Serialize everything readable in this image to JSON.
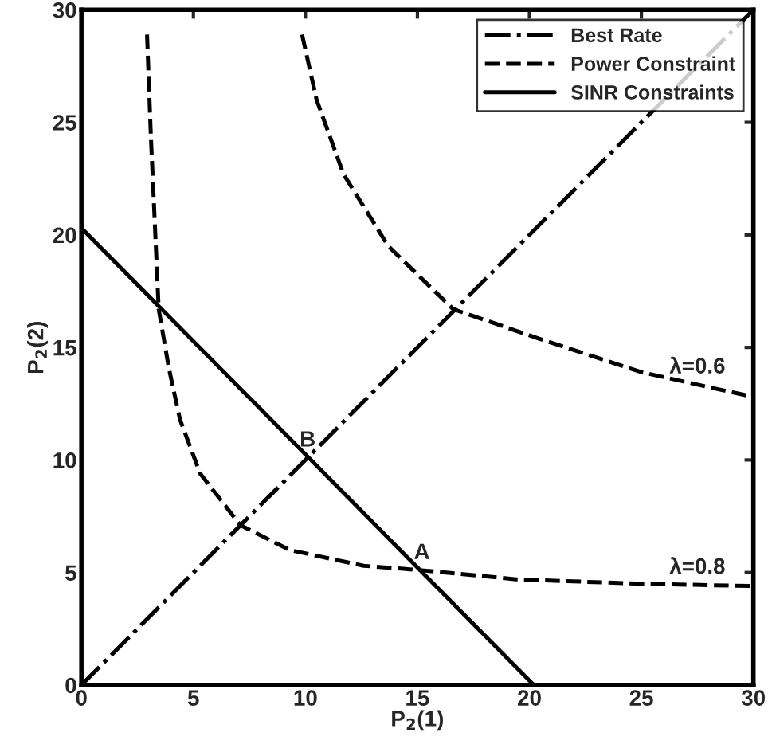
{
  "chart_data": {
    "type": "line",
    "xlabel": "P$_{2}$(1)",
    "ylabel": "P$_{2}$(2)",
    "xlim": [
      0,
      30
    ],
    "ylim": [
      0,
      30
    ],
    "xticks": [
      0,
      5,
      10,
      15,
      20,
      25,
      30
    ],
    "yticks": [
      0,
      5,
      10,
      15,
      20,
      25,
      30
    ],
    "grid": false,
    "legend": "top right",
    "series": [
      {
        "name": "Best Rate",
        "color": "#000000",
        "line_style": "dashdot",
        "x": [
          0,
          30
        ],
        "values": [
          0,
          30
        ]
      },
      {
        "name": "Power Constraint",
        "color": "#000000",
        "line_style": "dashed",
        "x": [
          9.85,
          10.5,
          11.7,
          13.7,
          16.6,
          20.4,
          25,
          30
        ],
        "values": [
          28.9,
          26,
          22.7,
          19.5,
          16.7,
          15.4,
          13.9,
          12.8
        ]
      },
      {
        "color": "#000000",
        "line_style": "dashed",
        "x": [
          2.93,
          3.1,
          3.45,
          3.9,
          4.4,
          5.3,
          7.1,
          9.3,
          12.6,
          15.2,
          19.4,
          25,
          30
        ],
        "values": [
          28.9,
          24.4,
          16.7,
          14.1,
          11.8,
          9.4,
          7.1,
          6.0,
          5.3,
          5.1,
          4.7,
          4.5,
          4.4
        ]
      },
      {
        "name": "SINR Constraints",
        "color": "#000000",
        "line_style": "solid",
        "x": [
          0,
          20.2
        ],
        "values": [
          20.3,
          0
        ]
      }
    ],
    "annotations": [
      {
        "text": "λ=0.6",
        "x": 27.5,
        "y": 13.35
      },
      {
        "text": "λ=0.8",
        "x": 27.5,
        "y": 4.45
      },
      {
        "text": "A",
        "x": 15.2,
        "y": 5.1
      },
      {
        "text": "B",
        "x": 10.1,
        "y": 10.1
      }
    ]
  }
}
